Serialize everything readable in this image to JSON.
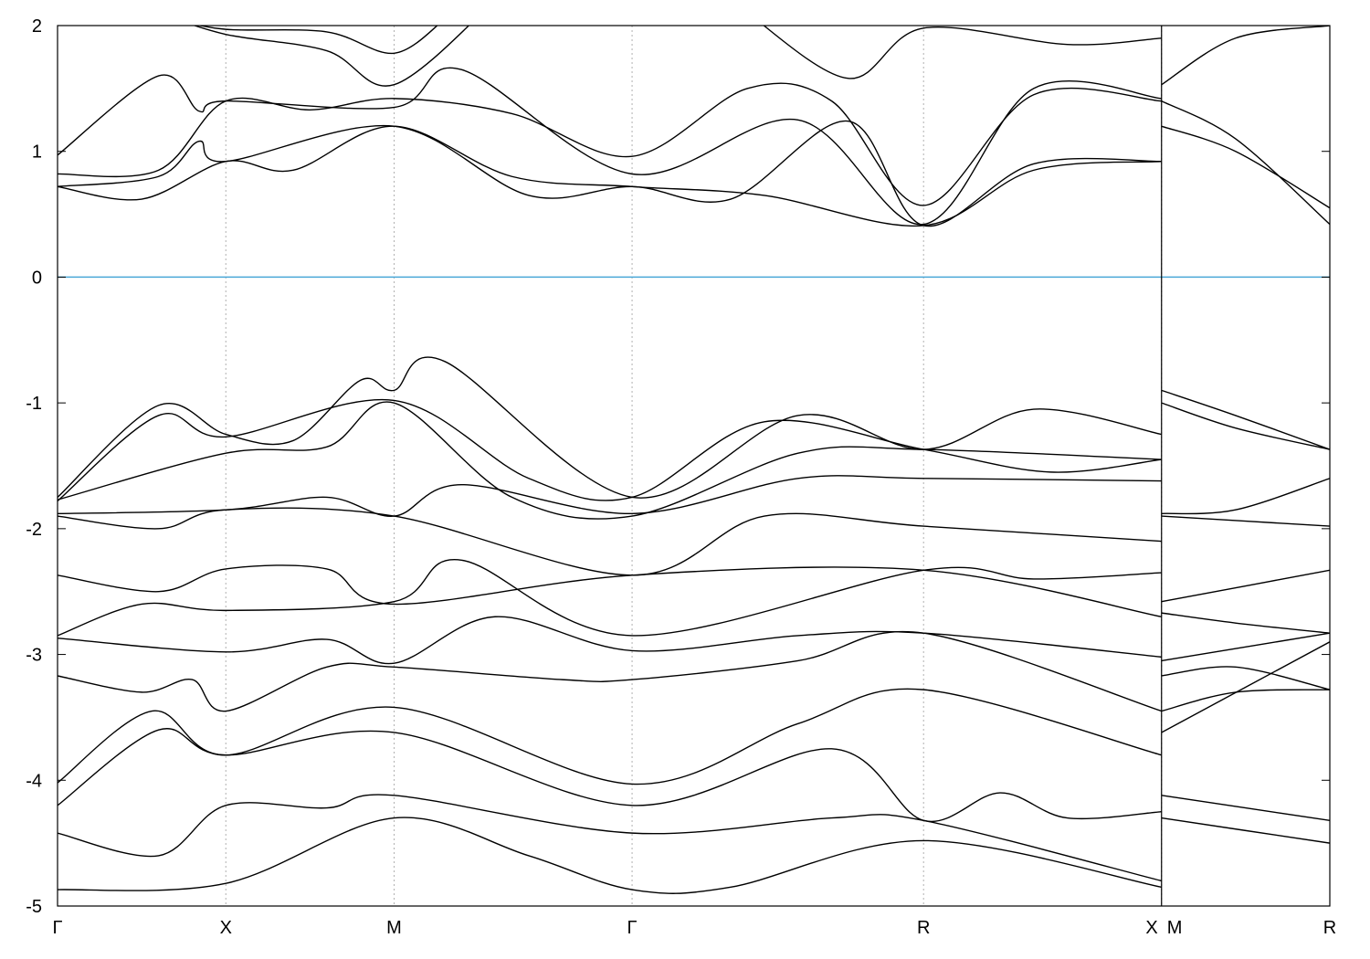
{
  "chart_data": {
    "type": "line",
    "title": "",
    "xlabel": "",
    "ylabel": "",
    "ylim": [
      -5,
      2
    ],
    "yticks": [
      "-5",
      "-4",
      "-3",
      "-2",
      "-1",
      "0",
      "1",
      "2"
    ],
    "xticks": [
      {
        "k": 0,
        "label": "Γ"
      },
      {
        "k": 0.5,
        "label": "X"
      },
      {
        "k": 1.0,
        "label": "M"
      },
      {
        "k": 1.707,
        "label": "Γ"
      },
      {
        "k": 2.573,
        "label": "R"
      },
      {
        "k": 3.28,
        "label": "X"
      },
      {
        "k": 3.28,
        "label": "M"
      },
      {
        "k": 3.78,
        "label": "R"
      }
    ],
    "xlim": [
      0,
      3.78
    ],
    "path_break_k": 3.28,
    "fermi_level": 0,
    "grid": "vertical dotted lines at high-symmetry points",
    "colors": {
      "bands": "#000000",
      "fermi_line": "#4aa8d8",
      "grid": "#b0b0b0"
    },
    "series": [
      {
        "values": [
          [
            0,
            0.72
          ],
          [
            0.25,
            0.62
          ],
          [
            0.5,
            0.92
          ],
          [
            0.7,
            0.85
          ],
          [
            1.0,
            1.2
          ],
          [
            1.35,
            0.8
          ],
          [
            1.707,
            0.72
          ],
          [
            2.1,
            0.65
          ],
          [
            2.573,
            0.41
          ],
          [
            2.9,
            0.85
          ],
          [
            3.28,
            0.92
          ]
        ]
      },
      {
        "values": [
          [
            0,
            0.82
          ],
          [
            0.3,
            0.85
          ],
          [
            0.5,
            1.4
          ],
          [
            0.75,
            1.33
          ],
          [
            1.0,
            1.42
          ],
          [
            1.35,
            1.3
          ],
          [
            1.707,
            0.96
          ],
          [
            2.05,
            1.5
          ],
          [
            2.3,
            1.4
          ],
          [
            2.573,
            0.57
          ],
          [
            2.9,
            1.45
          ],
          [
            3.28,
            1.4
          ]
        ]
      },
      {
        "values": [
          [
            0,
            0.97
          ],
          [
            0.3,
            1.6
          ],
          [
            0.42,
            1.32
          ],
          [
            0.5,
            1.4
          ],
          [
            1.0,
            1.35
          ],
          [
            1.2,
            1.65
          ],
          [
            1.707,
            0.82
          ],
          [
            2.2,
            1.25
          ],
          [
            2.573,
            0.42
          ],
          [
            2.9,
            1.5
          ],
          [
            3.28,
            1.42
          ]
        ]
      },
      {
        "values": [
          [
            0,
            0.72
          ],
          [
            0.3,
            0.8
          ],
          [
            0.42,
            1.08
          ],
          [
            0.5,
            0.92
          ],
          [
            1.0,
            1.2
          ],
          [
            1.4,
            0.65
          ],
          [
            1.707,
            0.72
          ],
          [
            2.0,
            0.62
          ],
          [
            2.35,
            1.24
          ],
          [
            2.573,
            0.41
          ],
          [
            2.9,
            0.9
          ],
          [
            3.28,
            0.92
          ]
        ]
      },
      {
        "values": [
          [
            0.3,
            2.1
          ],
          [
            0.5,
            1.93
          ],
          [
            0.8,
            1.8
          ],
          [
            1.0,
            1.53
          ],
          [
            1.3,
            2.2
          ]
        ]
      },
      {
        "values": [
          [
            0.35,
            2.05
          ],
          [
            0.5,
            1.97
          ],
          [
            0.8,
            1.95
          ],
          [
            1.0,
            1.78
          ],
          [
            1.15,
            2.05
          ]
        ]
      },
      {
        "values": [
          [
            2.05,
            2.1
          ],
          [
            2.35,
            1.58
          ],
          [
            2.573,
            1.98
          ],
          [
            3.0,
            1.85
          ],
          [
            3.28,
            1.9
          ]
        ]
      },
      {
        "values": [
          [
            3.28,
            1.4
          ],
          [
            3.5,
            1.1
          ],
          [
            3.78,
            0.42
          ]
        ]
      },
      {
        "values": [
          [
            3.28,
            1.2
          ],
          [
            3.5,
            1.0
          ],
          [
            3.78,
            0.55
          ]
        ]
      },
      {
        "values": [
          [
            3.28,
            1.53
          ],
          [
            3.5,
            1.9
          ],
          [
            3.78,
            2.0
          ]
        ]
      },
      {
        "values": [
          [
            0,
            -1.75
          ],
          [
            0.3,
            -1.02
          ],
          [
            0.5,
            -1.25
          ],
          [
            0.7,
            -1.3
          ],
          [
            0.9,
            -0.82
          ],
          [
            1.0,
            -0.9
          ],
          [
            1.15,
            -0.67
          ],
          [
            1.707,
            -1.75
          ],
          [
            2.2,
            -1.1
          ],
          [
            2.573,
            -1.37
          ],
          [
            2.9,
            -1.05
          ],
          [
            3.28,
            -1.25
          ]
        ]
      },
      {
        "values": [
          [
            0,
            -1.78
          ],
          [
            0.3,
            -1.1
          ],
          [
            0.5,
            -1.27
          ],
          [
            1.0,
            -0.98
          ],
          [
            1.4,
            -1.6
          ],
          [
            1.707,
            -1.75
          ],
          [
            2.1,
            -1.15
          ],
          [
            2.573,
            -1.37
          ],
          [
            2.95,
            -1.55
          ],
          [
            3.28,
            -1.45
          ]
        ]
      },
      {
        "values": [
          [
            0,
            -1.77
          ],
          [
            0.5,
            -1.4
          ],
          [
            0.8,
            -1.35
          ],
          [
            1.0,
            -1.0
          ],
          [
            1.35,
            -1.75
          ],
          [
            1.707,
            -1.9
          ],
          [
            2.2,
            -1.4
          ],
          [
            2.573,
            -1.37
          ],
          [
            3.28,
            -1.45
          ]
        ]
      },
      {
        "values": [
          [
            0,
            -1.88
          ],
          [
            0.5,
            -1.85
          ],
          [
            0.8,
            -1.75
          ],
          [
            1.0,
            -1.9
          ],
          [
            1.2,
            -1.65
          ],
          [
            1.707,
            -1.88
          ],
          [
            2.2,
            -1.6
          ],
          [
            2.573,
            -1.6
          ],
          [
            3.28,
            -1.62
          ]
        ]
      },
      {
        "values": [
          [
            0,
            -1.9
          ],
          [
            0.3,
            -2.0
          ],
          [
            0.5,
            -1.85
          ],
          [
            1.0,
            -1.9
          ],
          [
            1.707,
            -2.37
          ],
          [
            2.1,
            -1.9
          ],
          [
            2.573,
            -1.98
          ],
          [
            3.28,
            -2.1
          ]
        ]
      },
      {
        "values": [
          [
            0,
            -2.37
          ],
          [
            0.3,
            -2.5
          ],
          [
            0.5,
            -2.32
          ],
          [
            0.8,
            -2.32
          ],
          [
            1.0,
            -2.6
          ],
          [
            1.707,
            -2.37
          ],
          [
            2.573,
            -2.33
          ],
          [
            3.28,
            -2.7
          ]
        ]
      },
      {
        "values": [
          [
            0,
            -2.85
          ],
          [
            0.25,
            -2.6
          ],
          [
            0.5,
            -2.65
          ],
          [
            1.0,
            -2.58
          ],
          [
            1.2,
            -2.25
          ],
          [
            1.707,
            -2.85
          ],
          [
            2.573,
            -2.33
          ],
          [
            2.9,
            -2.4
          ],
          [
            3.28,
            -2.35
          ]
        ]
      },
      {
        "values": [
          [
            0,
            -2.87
          ],
          [
            0.5,
            -2.98
          ],
          [
            0.8,
            -2.88
          ],
          [
            1.0,
            -3.07
          ],
          [
            1.3,
            -2.7
          ],
          [
            1.707,
            -2.97
          ],
          [
            2.2,
            -2.85
          ],
          [
            2.573,
            -2.83
          ],
          [
            3.28,
            -3.02
          ]
        ]
      },
      {
        "values": [
          [
            0,
            -3.17
          ],
          [
            0.25,
            -3.3
          ],
          [
            0.4,
            -3.2
          ],
          [
            0.5,
            -3.45
          ],
          [
            0.8,
            -3.1
          ],
          [
            1.0,
            -3.1
          ],
          [
            1.5,
            -3.2
          ],
          [
            1.707,
            -3.2
          ],
          [
            2.2,
            -3.05
          ],
          [
            2.573,
            -2.83
          ],
          [
            3.28,
            -3.45
          ]
        ]
      },
      {
        "values": [
          [
            0,
            -4.02
          ],
          [
            0.28,
            -3.45
          ],
          [
            0.5,
            -3.8
          ],
          [
            1.0,
            -3.42
          ],
          [
            1.707,
            -4.03
          ],
          [
            2.2,
            -3.55
          ],
          [
            2.573,
            -3.28
          ],
          [
            3.28,
            -3.8
          ]
        ]
      },
      {
        "values": [
          [
            0,
            -4.2
          ],
          [
            0.3,
            -3.6
          ],
          [
            0.5,
            -3.8
          ],
          [
            1.0,
            -3.62
          ],
          [
            1.707,
            -4.2
          ],
          [
            2.3,
            -3.75
          ],
          [
            2.573,
            -4.32
          ],
          [
            2.8,
            -4.1
          ],
          [
            3.0,
            -4.3
          ],
          [
            3.28,
            -4.25
          ]
        ]
      },
      {
        "values": [
          [
            0,
            -4.42
          ],
          [
            0.3,
            -4.6
          ],
          [
            0.5,
            -4.2
          ],
          [
            0.8,
            -4.22
          ],
          [
            1.0,
            -4.12
          ],
          [
            1.707,
            -4.42
          ],
          [
            2.3,
            -4.3
          ],
          [
            2.573,
            -4.32
          ],
          [
            3.28,
            -4.8
          ]
        ]
      },
      {
        "values": [
          [
            0,
            -4.87
          ],
          [
            0.5,
            -4.82
          ],
          [
            1.0,
            -4.3
          ],
          [
            1.4,
            -4.6
          ],
          [
            1.707,
            -4.87
          ],
          [
            2.0,
            -4.85
          ],
          [
            2.573,
            -4.48
          ],
          [
            3.28,
            -4.85
          ]
        ]
      },
      {
        "values": [
          [
            3.28,
            -0.9
          ],
          [
            3.5,
            -1.1
          ],
          [
            3.78,
            -1.37
          ]
        ]
      },
      {
        "values": [
          [
            3.28,
            -1.0
          ],
          [
            3.5,
            -1.2
          ],
          [
            3.78,
            -1.37
          ]
        ]
      },
      {
        "values": [
          [
            3.28,
            -1.88
          ],
          [
            3.5,
            -1.85
          ],
          [
            3.78,
            -1.6
          ]
        ]
      },
      {
        "values": [
          [
            3.28,
            -1.9
          ],
          [
            3.78,
            -1.98
          ]
        ]
      },
      {
        "values": [
          [
            3.28,
            -2.58
          ],
          [
            3.78,
            -2.33
          ]
        ]
      },
      {
        "values": [
          [
            3.28,
            -2.67
          ],
          [
            3.5,
            -2.75
          ],
          [
            3.78,
            -2.83
          ]
        ]
      },
      {
        "values": [
          [
            3.28,
            -3.05
          ],
          [
            3.78,
            -2.83
          ]
        ]
      },
      {
        "values": [
          [
            3.28,
            -3.17
          ],
          [
            3.5,
            -3.1
          ],
          [
            3.78,
            -3.28
          ]
        ]
      },
      {
        "values": [
          [
            3.28,
            -3.45
          ],
          [
            3.5,
            -3.3
          ],
          [
            3.78,
            -3.28
          ]
        ]
      },
      {
        "values": [
          [
            3.28,
            -3.62
          ],
          [
            3.78,
            -2.9
          ]
        ]
      },
      {
        "values": [
          [
            3.28,
            -4.12
          ],
          [
            3.78,
            -4.32
          ]
        ]
      },
      {
        "values": [
          [
            3.28,
            -4.3
          ],
          [
            3.78,
            -4.5
          ]
        ]
      }
    ]
  }
}
